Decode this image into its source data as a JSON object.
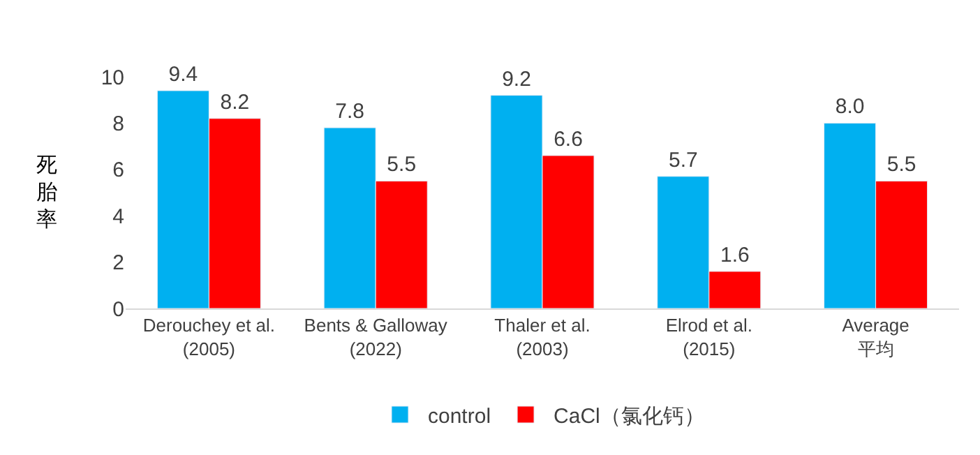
{
  "chart_data": {
    "type": "bar",
    "ylabel": "死胎率",
    "categories": [
      "Derouchey et al.\n(2005)",
      "Bents & Galloway\n(2022)",
      "Thaler et al.\n(2003)",
      "Elrod et al.\n(2015)",
      "Average\n平均"
    ],
    "series": [
      {
        "name": "control",
        "color": "#00b0f0",
        "values": [
          9.4,
          7.8,
          9.2,
          5.7,
          8.0
        ],
        "value_labels": [
          "9.4",
          "7.8",
          "9.2",
          "5.7",
          "8.0"
        ]
      },
      {
        "name": "CaCl（氯化钙）",
        "color": "#ff0000",
        "values": [
          8.2,
          5.5,
          6.6,
          1.6,
          5.5
        ],
        "value_labels": [
          "8.2",
          "5.5",
          "6.6",
          "1.6",
          "5.5"
        ]
      }
    ],
    "ylim": [
      0,
      10
    ],
    "yticks": [
      0,
      2,
      4,
      6,
      8,
      10
    ],
    "legend": "bottom"
  }
}
